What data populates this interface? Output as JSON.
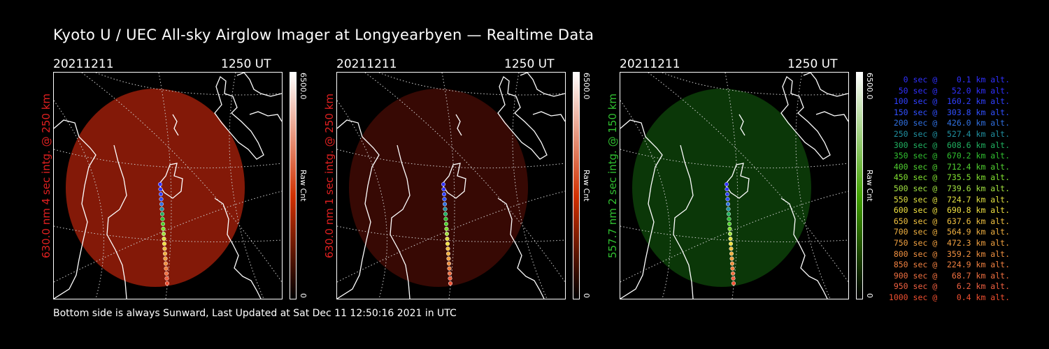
{
  "title": "Kyoto U / UEC All-sky Airglow Imager at Longyearbyen — Realtime Data",
  "panels": [
    {
      "date": "20211211",
      "time": "1250 UT",
      "ylabel": "630.0 nm 4 sec intg. @ 250 km",
      "ylabel_color": "#e02020",
      "cbar_max": "6500.0",
      "cbar_min": "0",
      "cbar_label": "Raw Cnt",
      "cbar_color": "#d03000",
      "image_color": "#8a1a08"
    },
    {
      "date": "20211211",
      "time": "1250 UT",
      "ylabel": "630.0 nm 1 sec intg. @ 250 km",
      "ylabel_color": "#e02020",
      "cbar_max": "6500.0",
      "cbar_min": "0",
      "cbar_label": "Raw Cnt",
      "cbar_color": "#d03000",
      "image_color": "#3a0a04"
    },
    {
      "date": "20211211",
      "time": "1250 UT",
      "ylabel": "557.7 nm 2 sec intg. @ 150 km",
      "ylabel_color": "#30c030",
      "cbar_max": "6500.0",
      "cbar_min": "0",
      "cbar_label": "Raw Cnt",
      "cbar_color": "#40a000",
      "image_color": "#0c3a08"
    }
  ],
  "footer": "Bottom side is always Sunward, Last Updated at Sat Dec 11 12:50:16 2021 in UTC",
  "legend": [
    {
      "text": "   0 sec @    0.1 km alt.",
      "color": "#3030ff"
    },
    {
      "text": "  50 sec @   52.0 km alt.",
      "color": "#3030ff"
    },
    {
      "text": " 100 sec @  160.2 km alt.",
      "color": "#3040ff"
    },
    {
      "text": " 150 sec @  303.8 km alt.",
      "color": "#3050ff"
    },
    {
      "text": " 200 sec @  426.0 km alt.",
      "color": "#3070e0"
    },
    {
      "text": " 250 sec @  527.4 km alt.",
      "color": "#2090a0"
    },
    {
      "text": " 300 sec @  608.6 km alt.",
      "color": "#20b060"
    },
    {
      "text": " 350 sec @  670.2 km alt.",
      "color": "#30c030"
    },
    {
      "text": " 400 sec @  712.4 km alt.",
      "color": "#50d030"
    },
    {
      "text": " 450 sec @  735.5 km alt.",
      "color": "#80e030"
    },
    {
      "text": " 500 sec @  739.6 km alt.",
      "color": "#a0e040"
    },
    {
      "text": " 550 sec @  724.7 km alt.",
      "color": "#e0e040"
    },
    {
      "text": " 600 sec @  690.8 km alt.",
      "color": "#f0e040"
    },
    {
      "text": " 650 sec @  637.6 km alt.",
      "color": "#f0c040"
    },
    {
      "text": " 700 sec @  564.9 km alt.",
      "color": "#f0b040"
    },
    {
      "text": " 750 sec @  472.3 km alt.",
      "color": "#f0a040"
    },
    {
      "text": " 800 sec @  359.2 km alt.",
      "color": "#f09040"
    },
    {
      "text": " 850 sec @  224.9 km alt.",
      "color": "#f08040"
    },
    {
      "text": " 900 sec @   68.7 km alt.",
      "color": "#f07040"
    },
    {
      "text": " 950 sec @    6.2 km alt.",
      "color": "#f06040"
    },
    {
      "text": "1000 sec @    0.4 km alt.",
      "color": "#f05030"
    }
  ]
}
